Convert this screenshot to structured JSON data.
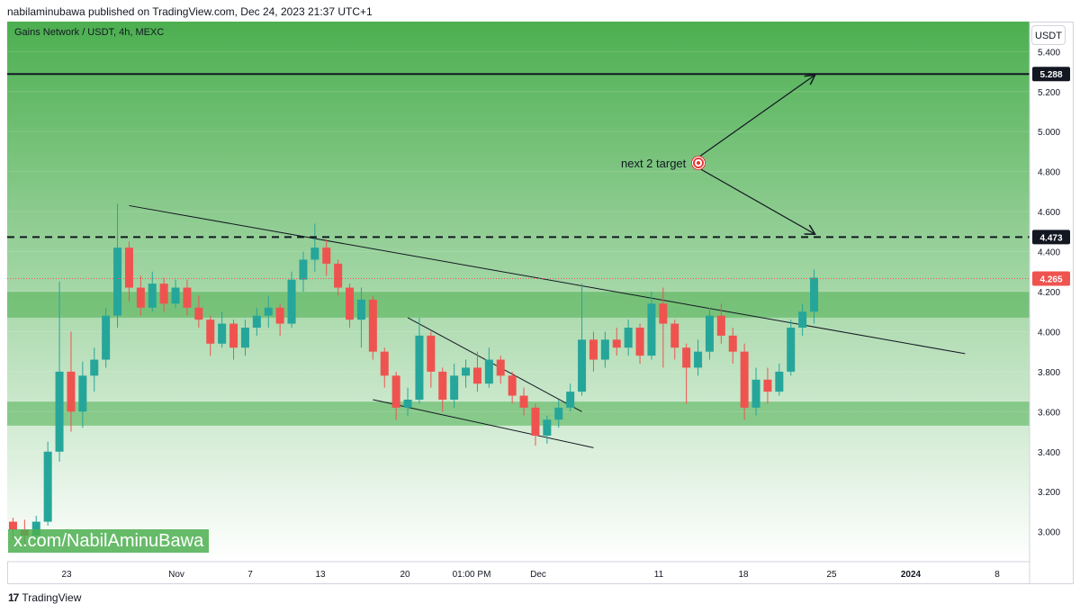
{
  "header": {
    "text": "nabilaminubawa published on TradingView.com, Dec 24, 2023 21:37 UTC+1"
  },
  "symbol": {
    "text": "Gains Network / USDT, 4h, MEXC"
  },
  "unit_button": {
    "label": "USDT"
  },
  "watermark": {
    "text": "x.com/NabilAminuBawa"
  },
  "footer": {
    "logo": "17",
    "text": "TradingView"
  },
  "annotation": {
    "text": "next 2 target",
    "icon": "target-icon"
  },
  "colors": {
    "up": "#26a69a",
    "down": "#ef5350",
    "zone": "#4caf50",
    "bg_top": "#4caf50",
    "bg_bottom": "#ffffff"
  },
  "chart_data": {
    "type": "candlestick",
    "ylim": [
      2.85,
      5.55
    ],
    "y_ticks": [
      "3.000",
      "3.200",
      "3.400",
      "3.600",
      "3.800",
      "4.000",
      "4.200",
      "4.400",
      "4.600",
      "4.800",
      "5.000",
      "5.200",
      "5.400"
    ],
    "x_ticks": [
      "23",
      "Nov",
      "7",
      "13",
      "20",
      "01:00 PM",
      "Dec",
      "11",
      "18",
      "25",
      "2024",
      "8"
    ],
    "price_labels": [
      {
        "value": 5.288,
        "text": "5.288",
        "style": "solid",
        "color": "#131722"
      },
      {
        "value": 4.473,
        "text": "4.473",
        "style": "dashed",
        "color": "#131722"
      },
      {
        "value": 4.265,
        "text": "4.265",
        "style": "last",
        "color": "#ef5350"
      }
    ],
    "zones": [
      {
        "from": 4.07,
        "to": 4.2
      },
      {
        "from": 3.53,
        "to": 3.65
      }
    ],
    "trend_lines": [
      {
        "name": "descending-resistance",
        "from": [
          "Oct 26",
          4.63
        ],
        "to": [
          "Jan 6",
          3.89
        ]
      },
      {
        "name": "wedge-upper",
        "from": [
          "Nov 19",
          4.07
        ],
        "to": [
          "Dec 4",
          3.6
        ]
      },
      {
        "name": "wedge-lower",
        "from": [
          "Nov 16",
          3.66
        ],
        "to": [
          "Dec 5",
          3.42
        ]
      }
    ],
    "arrows": [
      {
        "from": [
          "Dec 14",
          4.87
        ],
        "to": [
          "Dec 24",
          5.28
        ]
      },
      {
        "from": [
          "Dec 14",
          4.82
        ],
        "to": [
          "Dec 24",
          4.49
        ]
      }
    ],
    "candles": [
      {
        "t": "Oct 16",
        "o": 3.05,
        "h": 3.07,
        "l": 2.96,
        "c": 3.01
      },
      {
        "t": "Oct 17",
        "o": 3.01,
        "h": 3.06,
        "l": 2.92,
        "c": 2.98
      },
      {
        "t": "Oct 18",
        "o": 2.98,
        "h": 3.08,
        "l": 2.95,
        "c": 3.05
      },
      {
        "t": "Oct 19",
        "o": 3.05,
        "h": 3.45,
        "l": 3.03,
        "c": 3.4
      },
      {
        "t": "Oct 20",
        "o": 3.4,
        "h": 4.25,
        "l": 3.35,
        "c": 3.8
      },
      {
        "t": "Oct 21",
        "o": 3.8,
        "h": 4.0,
        "l": 3.5,
        "c": 3.6
      },
      {
        "t": "Oct 22",
        "o": 3.6,
        "h": 3.85,
        "l": 3.52,
        "c": 3.78
      },
      {
        "t": "Oct 23",
        "o": 3.78,
        "h": 3.92,
        "l": 3.7,
        "c": 3.86
      },
      {
        "t": "Oct 24",
        "o": 3.86,
        "h": 4.12,
        "l": 3.82,
        "c": 4.08
      },
      {
        "t": "Oct 25",
        "o": 4.08,
        "h": 4.64,
        "l": 4.02,
        "c": 4.42
      },
      {
        "t": "Oct 26",
        "o": 4.42,
        "h": 4.45,
        "l": 4.15,
        "c": 4.22
      },
      {
        "t": "Oct 27",
        "o": 4.22,
        "h": 4.28,
        "l": 4.08,
        "c": 4.12
      },
      {
        "t": "Oct 28",
        "o": 4.12,
        "h": 4.3,
        "l": 4.1,
        "c": 4.24
      },
      {
        "t": "Oct 29",
        "o": 4.24,
        "h": 4.27,
        "l": 4.1,
        "c": 4.14
      },
      {
        "t": "Oct 30",
        "o": 4.14,
        "h": 4.26,
        "l": 4.12,
        "c": 4.22
      },
      {
        "t": "Oct 31",
        "o": 4.22,
        "h": 4.26,
        "l": 4.08,
        "c": 4.12
      },
      {
        "t": "Nov 1",
        "o": 4.12,
        "h": 4.18,
        "l": 4.02,
        "c": 4.06
      },
      {
        "t": "Nov 2",
        "o": 4.06,
        "h": 4.08,
        "l": 3.88,
        "c": 3.94
      },
      {
        "t": "Nov 3",
        "o": 3.94,
        "h": 4.1,
        "l": 3.92,
        "c": 4.04
      },
      {
        "t": "Nov 4",
        "o": 4.04,
        "h": 4.06,
        "l": 3.86,
        "c": 3.92
      },
      {
        "t": "Nov 5",
        "o": 3.92,
        "h": 4.06,
        "l": 3.88,
        "c": 4.02
      },
      {
        "t": "Nov 6",
        "o": 4.02,
        "h": 4.12,
        "l": 3.98,
        "c": 4.08
      },
      {
        "t": "Nov 7",
        "o": 4.08,
        "h": 4.18,
        "l": 4.02,
        "c": 4.12
      },
      {
        "t": "Nov 8",
        "o": 4.12,
        "h": 4.14,
        "l": 3.98,
        "c": 4.04
      },
      {
        "t": "Nov 9",
        "o": 4.04,
        "h": 4.3,
        "l": 4.02,
        "c": 4.26
      },
      {
        "t": "Nov 10",
        "o": 4.26,
        "h": 4.4,
        "l": 4.2,
        "c": 4.36
      },
      {
        "t": "Nov 11",
        "o": 4.36,
        "h": 4.54,
        "l": 4.3,
        "c": 4.42
      },
      {
        "t": "Nov 12",
        "o": 4.42,
        "h": 4.46,
        "l": 4.28,
        "c": 4.34
      },
      {
        "t": "Nov 13",
        "o": 4.34,
        "h": 4.36,
        "l": 4.18,
        "c": 4.22
      },
      {
        "t": "Nov 14",
        "o": 4.22,
        "h": 4.24,
        "l": 4.02,
        "c": 4.06
      },
      {
        "t": "Nov 15",
        "o": 4.06,
        "h": 4.22,
        "l": 3.92,
        "c": 4.16
      },
      {
        "t": "Nov 16",
        "o": 4.16,
        "h": 4.18,
        "l": 3.86,
        "c": 3.9
      },
      {
        "t": "Nov 17",
        "o": 3.9,
        "h": 3.92,
        "l": 3.72,
        "c": 3.78
      },
      {
        "t": "Nov 18",
        "o": 3.78,
        "h": 3.8,
        "l": 3.56,
        "c": 3.62
      },
      {
        "t": "Nov 19",
        "o": 3.62,
        "h": 3.72,
        "l": 3.58,
        "c": 3.66
      },
      {
        "t": "Nov 20",
        "o": 3.66,
        "h": 4.07,
        "l": 3.64,
        "c": 3.98
      },
      {
        "t": "Nov 21",
        "o": 3.98,
        "h": 4.0,
        "l": 3.72,
        "c": 3.8
      },
      {
        "t": "Nov 22",
        "o": 3.8,
        "h": 3.82,
        "l": 3.6,
        "c": 3.66
      },
      {
        "t": "Nov 23",
        "o": 3.66,
        "h": 3.84,
        "l": 3.62,
        "c": 3.78
      },
      {
        "t": "Nov 24",
        "o": 3.78,
        "h": 3.86,
        "l": 3.72,
        "c": 3.82
      },
      {
        "t": "Nov 25",
        "o": 3.82,
        "h": 3.9,
        "l": 3.7,
        "c": 3.74
      },
      {
        "t": "Nov 26",
        "o": 3.74,
        "h": 3.92,
        "l": 3.72,
        "c": 3.86
      },
      {
        "t": "Nov 27",
        "o": 3.86,
        "h": 3.88,
        "l": 3.74,
        "c": 3.78
      },
      {
        "t": "Nov 28",
        "o": 3.78,
        "h": 3.8,
        "l": 3.64,
        "c": 3.68
      },
      {
        "t": "Nov 29",
        "o": 3.68,
        "h": 3.72,
        "l": 3.58,
        "c": 3.62
      },
      {
        "t": "Nov 30",
        "o": 3.62,
        "h": 3.64,
        "l": 3.43,
        "c": 3.48
      },
      {
        "t": "Dec 1",
        "o": 3.48,
        "h": 3.58,
        "l": 3.44,
        "c": 3.56
      },
      {
        "t": "Dec 2",
        "o": 3.56,
        "h": 3.66,
        "l": 3.52,
        "c": 3.62
      },
      {
        "t": "Dec 3",
        "o": 3.62,
        "h": 3.74,
        "l": 3.6,
        "c": 3.7
      },
      {
        "t": "Dec 4",
        "o": 3.7,
        "h": 4.24,
        "l": 3.68,
        "c": 3.96
      },
      {
        "t": "Dec 5",
        "o": 3.96,
        "h": 4.0,
        "l": 3.8,
        "c": 3.86
      },
      {
        "t": "Dec 6",
        "o": 3.86,
        "h": 4.0,
        "l": 3.82,
        "c": 3.96
      },
      {
        "t": "Dec 7",
        "o": 3.96,
        "h": 4.02,
        "l": 3.88,
        "c": 3.92
      },
      {
        "t": "Dec 8",
        "o": 3.92,
        "h": 4.06,
        "l": 3.88,
        "c": 4.02
      },
      {
        "t": "Dec 9",
        "o": 4.02,
        "h": 4.04,
        "l": 3.84,
        "c": 3.88
      },
      {
        "t": "Dec 10",
        "o": 3.88,
        "h": 4.2,
        "l": 3.86,
        "c": 4.14
      },
      {
        "t": "Dec 11",
        "o": 4.14,
        "h": 4.22,
        "l": 3.82,
        "c": 4.04
      },
      {
        "t": "Dec 12",
        "o": 4.04,
        "h": 4.06,
        "l": 3.86,
        "c": 3.92
      },
      {
        "t": "Dec 13",
        "o": 3.92,
        "h": 3.94,
        "l": 3.64,
        "c": 3.82
      },
      {
        "t": "Dec 14",
        "o": 3.82,
        "h": 3.96,
        "l": 3.78,
        "c": 3.9
      },
      {
        "t": "Dec 15",
        "o": 3.9,
        "h": 4.12,
        "l": 3.86,
        "c": 4.08
      },
      {
        "t": "Dec 16",
        "o": 4.08,
        "h": 4.14,
        "l": 3.94,
        "c": 3.98
      },
      {
        "t": "Dec 17",
        "o": 3.98,
        "h": 4.02,
        "l": 3.84,
        "c": 3.9
      },
      {
        "t": "Dec 18",
        "o": 3.9,
        "h": 3.94,
        "l": 3.56,
        "c": 3.62
      },
      {
        "t": "Dec 19",
        "o": 3.62,
        "h": 3.82,
        "l": 3.58,
        "c": 3.76
      },
      {
        "t": "Dec 20",
        "o": 3.76,
        "h": 3.82,
        "l": 3.64,
        "c": 3.7
      },
      {
        "t": "Dec 21",
        "o": 3.7,
        "h": 3.84,
        "l": 3.68,
        "c": 3.8
      },
      {
        "t": "Dec 22",
        "o": 3.8,
        "h": 4.06,
        "l": 3.78,
        "c": 4.02
      },
      {
        "t": "Dec 23",
        "o": 4.02,
        "h": 4.14,
        "l": 3.98,
        "c": 4.1
      },
      {
        "t": "Dec 24",
        "o": 4.1,
        "h": 4.31,
        "l": 4.04,
        "c": 4.27
      }
    ]
  }
}
